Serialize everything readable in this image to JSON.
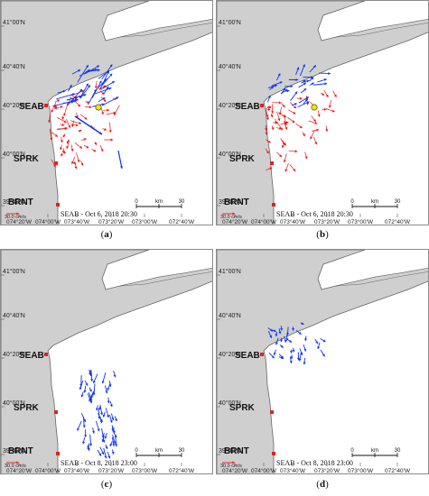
{
  "figure": {
    "panels": [
      {
        "id": "a",
        "caption_letter": "a",
        "time_label": "SEAB - Oct 6, 2018 20:30",
        "flow": "northeast",
        "has_buoy": true
      },
      {
        "id": "b",
        "caption_letter": "b",
        "time_label": "SEAB - Oct 6, 2018 20:30",
        "flow": "northeast-weak",
        "has_buoy": true
      },
      {
        "id": "c",
        "caption_letter": "c",
        "time_label": "SEAB - Oct 8, 2018 23:00",
        "flow": "south",
        "has_buoy": false
      },
      {
        "id": "d",
        "caption_letter": "d",
        "time_label": "SEAB - Oct 8, 2018 23:00",
        "flow": "southeast",
        "has_buoy": false
      }
    ],
    "map": {
      "lat_labels": [
        "41°00'N",
        "40°40'N",
        "40°20'N",
        "40°00'N",
        "39°40'N"
      ],
      "lon_labels": [
        "074°20'W",
        "074°00'W",
        "073°40'W",
        "073°20'W",
        "073°00'W",
        "072°40'W"
      ],
      "stations": [
        "SEAB",
        "SPRK",
        "BRNT"
      ],
      "scale_labels": [
        "0",
        "km",
        "30"
      ],
      "reference_vector": "30.0 cm/s"
    },
    "colors": {
      "land": "#cfcfcf",
      "coast": "#666666",
      "red_vector": "#ee1111",
      "blue_vector": "#1133ee",
      "station": "#dd2222",
      "buoy": "#f2e600"
    }
  }
}
